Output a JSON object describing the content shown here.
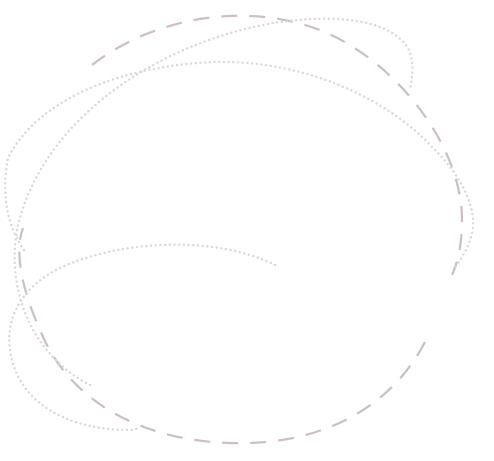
{
  "background_color": "#ffffff",
  "dashed_stroke_color": "#cbbfc4",
  "dotted_stroke_color": "#d9d9d9",
  "elements": {
    "dashed_loop": {
      "style": "dashed"
    },
    "outer_dotted_swirl": {
      "style": "dotted"
    },
    "top_dotted_arc": {
      "style": "dotted"
    },
    "inner_dotted_arc": {
      "style": "dotted"
    }
  }
}
